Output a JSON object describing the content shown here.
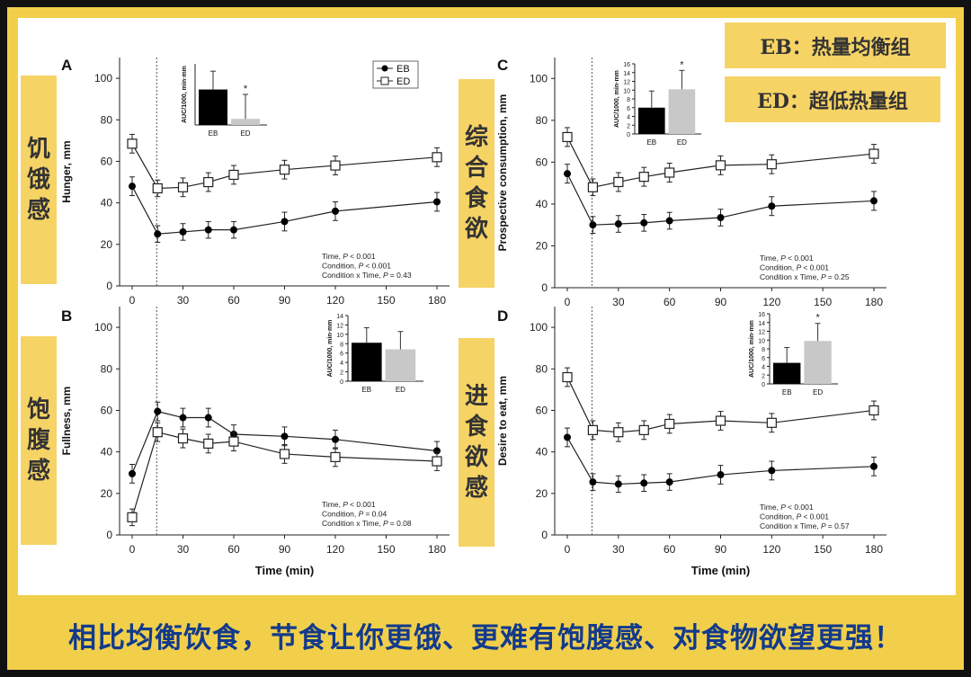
{
  "colors": {
    "frame": "#111111",
    "yellow": "#f1cf4a",
    "label_bg": "#f6d365",
    "banner_text": "#123a8c",
    "eb": "#000000",
    "ed_bar": "#c8c8c8"
  },
  "legend_boxes": {
    "eb": "EB：热量均衡组",
    "ed": "ED：超低热量组"
  },
  "side_labels": {
    "a": "饥饿感",
    "b": "饱腹感",
    "c": "综合食欲",
    "d": "进食欲感"
  },
  "banner": "相比均衡饮食，节食让你更饿、更难有饱腹感、对食物欲望更强！",
  "chart_data": [
    {
      "panel": "A",
      "type": "line",
      "ylabel": "Hunger, mm",
      "xlabel": "",
      "x": [
        0,
        15,
        30,
        45,
        60,
        90,
        120,
        180
      ],
      "xticks": [
        0,
        30,
        60,
        90,
        120,
        150,
        180
      ],
      "ylim": [
        0,
        110
      ],
      "yticks": [
        0,
        20,
        40,
        60,
        80,
        100
      ],
      "xlim": [
        0,
        180
      ],
      "series": [
        {
          "name": "EB",
          "values": [
            48,
            25,
            26,
            27,
            27,
            31,
            36,
            40.5
          ],
          "err": [
            4.5,
            4,
            4,
            4,
            4,
            4.5,
            4.5,
            4.5
          ]
        },
        {
          "name": "ED",
          "values": [
            68.5,
            47,
            47.5,
            50,
            53.5,
            56,
            58,
            62
          ],
          "err": [
            4.5,
            4,
            4.5,
            4.5,
            4.5,
            4.5,
            4.5,
            4.5
          ]
        }
      ],
      "legend": [
        "EB",
        "ED"
      ],
      "stats": [
        "Time, P < 0.001",
        "Condition, P < 0.001",
        "Condition x Time, P = 0.43"
      ],
      "inset": {
        "ylabel": "AUC/1000, min·mm",
        "categories": [
          "EB",
          "ED"
        ],
        "values": [
          5.8,
          1.0
        ],
        "err": [
          3.0,
          4.0
        ],
        "ymax": 10,
        "yticks": [],
        "star": "*"
      }
    },
    {
      "panel": "B",
      "type": "line",
      "ylabel": "Fullness, mm",
      "xlabel": "Time (min)",
      "x": [
        0,
        15,
        30,
        45,
        60,
        90,
        120,
        180
      ],
      "xticks": [
        0,
        30,
        60,
        90,
        120,
        150,
        180
      ],
      "ylim": [
        0,
        110
      ],
      "yticks": [
        0,
        20,
        40,
        60,
        80,
        100
      ],
      "xlim": [
        0,
        180
      ],
      "series": [
        {
          "name": "EB",
          "values": [
            29.5,
            59.5,
            56.5,
            56.5,
            48.5,
            47.5,
            46,
            40.5
          ],
          "err": [
            4.5,
            4.5,
            4.5,
            4.5,
            4.5,
            4.5,
            4.5,
            4.5
          ]
        },
        {
          "name": "ED",
          "values": [
            8.5,
            49.5,
            46.5,
            44,
            45,
            39,
            37.5,
            35.5
          ],
          "err": [
            4,
            4.5,
            4.5,
            4.5,
            4.5,
            4.5,
            4.5,
            4.5
          ]
        }
      ],
      "stats": [
        "Time, P < 0.001",
        "Condition, P = 0.04",
        "Condition x Time, P = 0.08"
      ],
      "inset": {
        "ylabel": "AUC/1000, min·mm",
        "categories": [
          "EB",
          "ED"
        ],
        "values": [
          8.2,
          6.8
        ],
        "err": [
          3.2,
          3.8
        ],
        "ymax": 14,
        "yticks": [
          0,
          2,
          4,
          6,
          8,
          10,
          12,
          14
        ],
        "star": ""
      }
    },
    {
      "panel": "C",
      "type": "line",
      "ylabel": "Prospective consumption, mm",
      "xlabel": "",
      "x": [
        0,
        15,
        30,
        45,
        60,
        90,
        120,
        180
      ],
      "xticks": [
        0,
        30,
        60,
        90,
        120,
        150,
        180
      ],
      "ylim": [
        0,
        110
      ],
      "yticks": [
        0,
        20,
        40,
        60,
        80,
        100
      ],
      "xlim": [
        0,
        180
      ],
      "series": [
        {
          "name": "EB",
          "values": [
            54.5,
            30,
            30.5,
            31,
            32,
            33.5,
            39,
            41.5
          ],
          "err": [
            4.5,
            4,
            4,
            4,
            4,
            4,
            4.5,
            4.5
          ]
        },
        {
          "name": "ED",
          "values": [
            72,
            48,
            50.5,
            53,
            55,
            58.5,
            59,
            64
          ],
          "err": [
            4.5,
            4,
            4.5,
            4.5,
            4.5,
            4.5,
            4.5,
            4.5
          ]
        }
      ],
      "stats": [
        "Time, P < 0.001",
        "Condition, P < 0.001",
        "Condition x Time, P = 0.25"
      ],
      "inset": {
        "ylabel": "AUC/1000, min·mm",
        "categories": [
          "EB",
          "ED"
        ],
        "values": [
          6.0,
          10.2
        ],
        "err": [
          3.8,
          4.3
        ],
        "ymax": 16,
        "yticks": [
          0,
          2,
          4,
          6,
          8,
          10,
          12,
          14,
          16
        ],
        "star": "*"
      }
    },
    {
      "panel": "D",
      "type": "line",
      "ylabel": "Desire to eat, mm",
      "xlabel": "Time (min)",
      "x": [
        0,
        15,
        30,
        45,
        60,
        90,
        120,
        180
      ],
      "xticks": [
        0,
        30,
        60,
        90,
        120,
        150,
        180
      ],
      "ylim": [
        0,
        110
      ],
      "yticks": [
        0,
        20,
        40,
        60,
        80,
        100
      ],
      "xlim": [
        0,
        180
      ],
      "series": [
        {
          "name": "EB",
          "values": [
            47,
            25.5,
            24.5,
            25,
            25.5,
            29,
            31,
            33
          ],
          "err": [
            4.5,
            4,
            4,
            4,
            4,
            4.5,
            4.5,
            4.5
          ]
        },
        {
          "name": "ED",
          "values": [
            76,
            50.5,
            49.5,
            50.5,
            53.5,
            55,
            54,
            60
          ],
          "err": [
            4.5,
            4.5,
            4.5,
            4.5,
            4.5,
            4.5,
            4.5,
            4.5
          ]
        }
      ],
      "stats": [
        "Time, P < 0.001",
        "Condition, P < 0.001",
        "Condition x Time, P = 0.57"
      ],
      "inset": {
        "ylabel": "AUC/1000, min·mm",
        "categories": [
          "EB",
          "ED"
        ],
        "values": [
          4.8,
          9.8
        ],
        "err": [
          3.5,
          4.0
        ],
        "ymax": 16,
        "yticks": [
          0,
          2,
          4,
          6,
          8,
          10,
          12,
          14,
          16
        ],
        "star": "*"
      }
    }
  ]
}
